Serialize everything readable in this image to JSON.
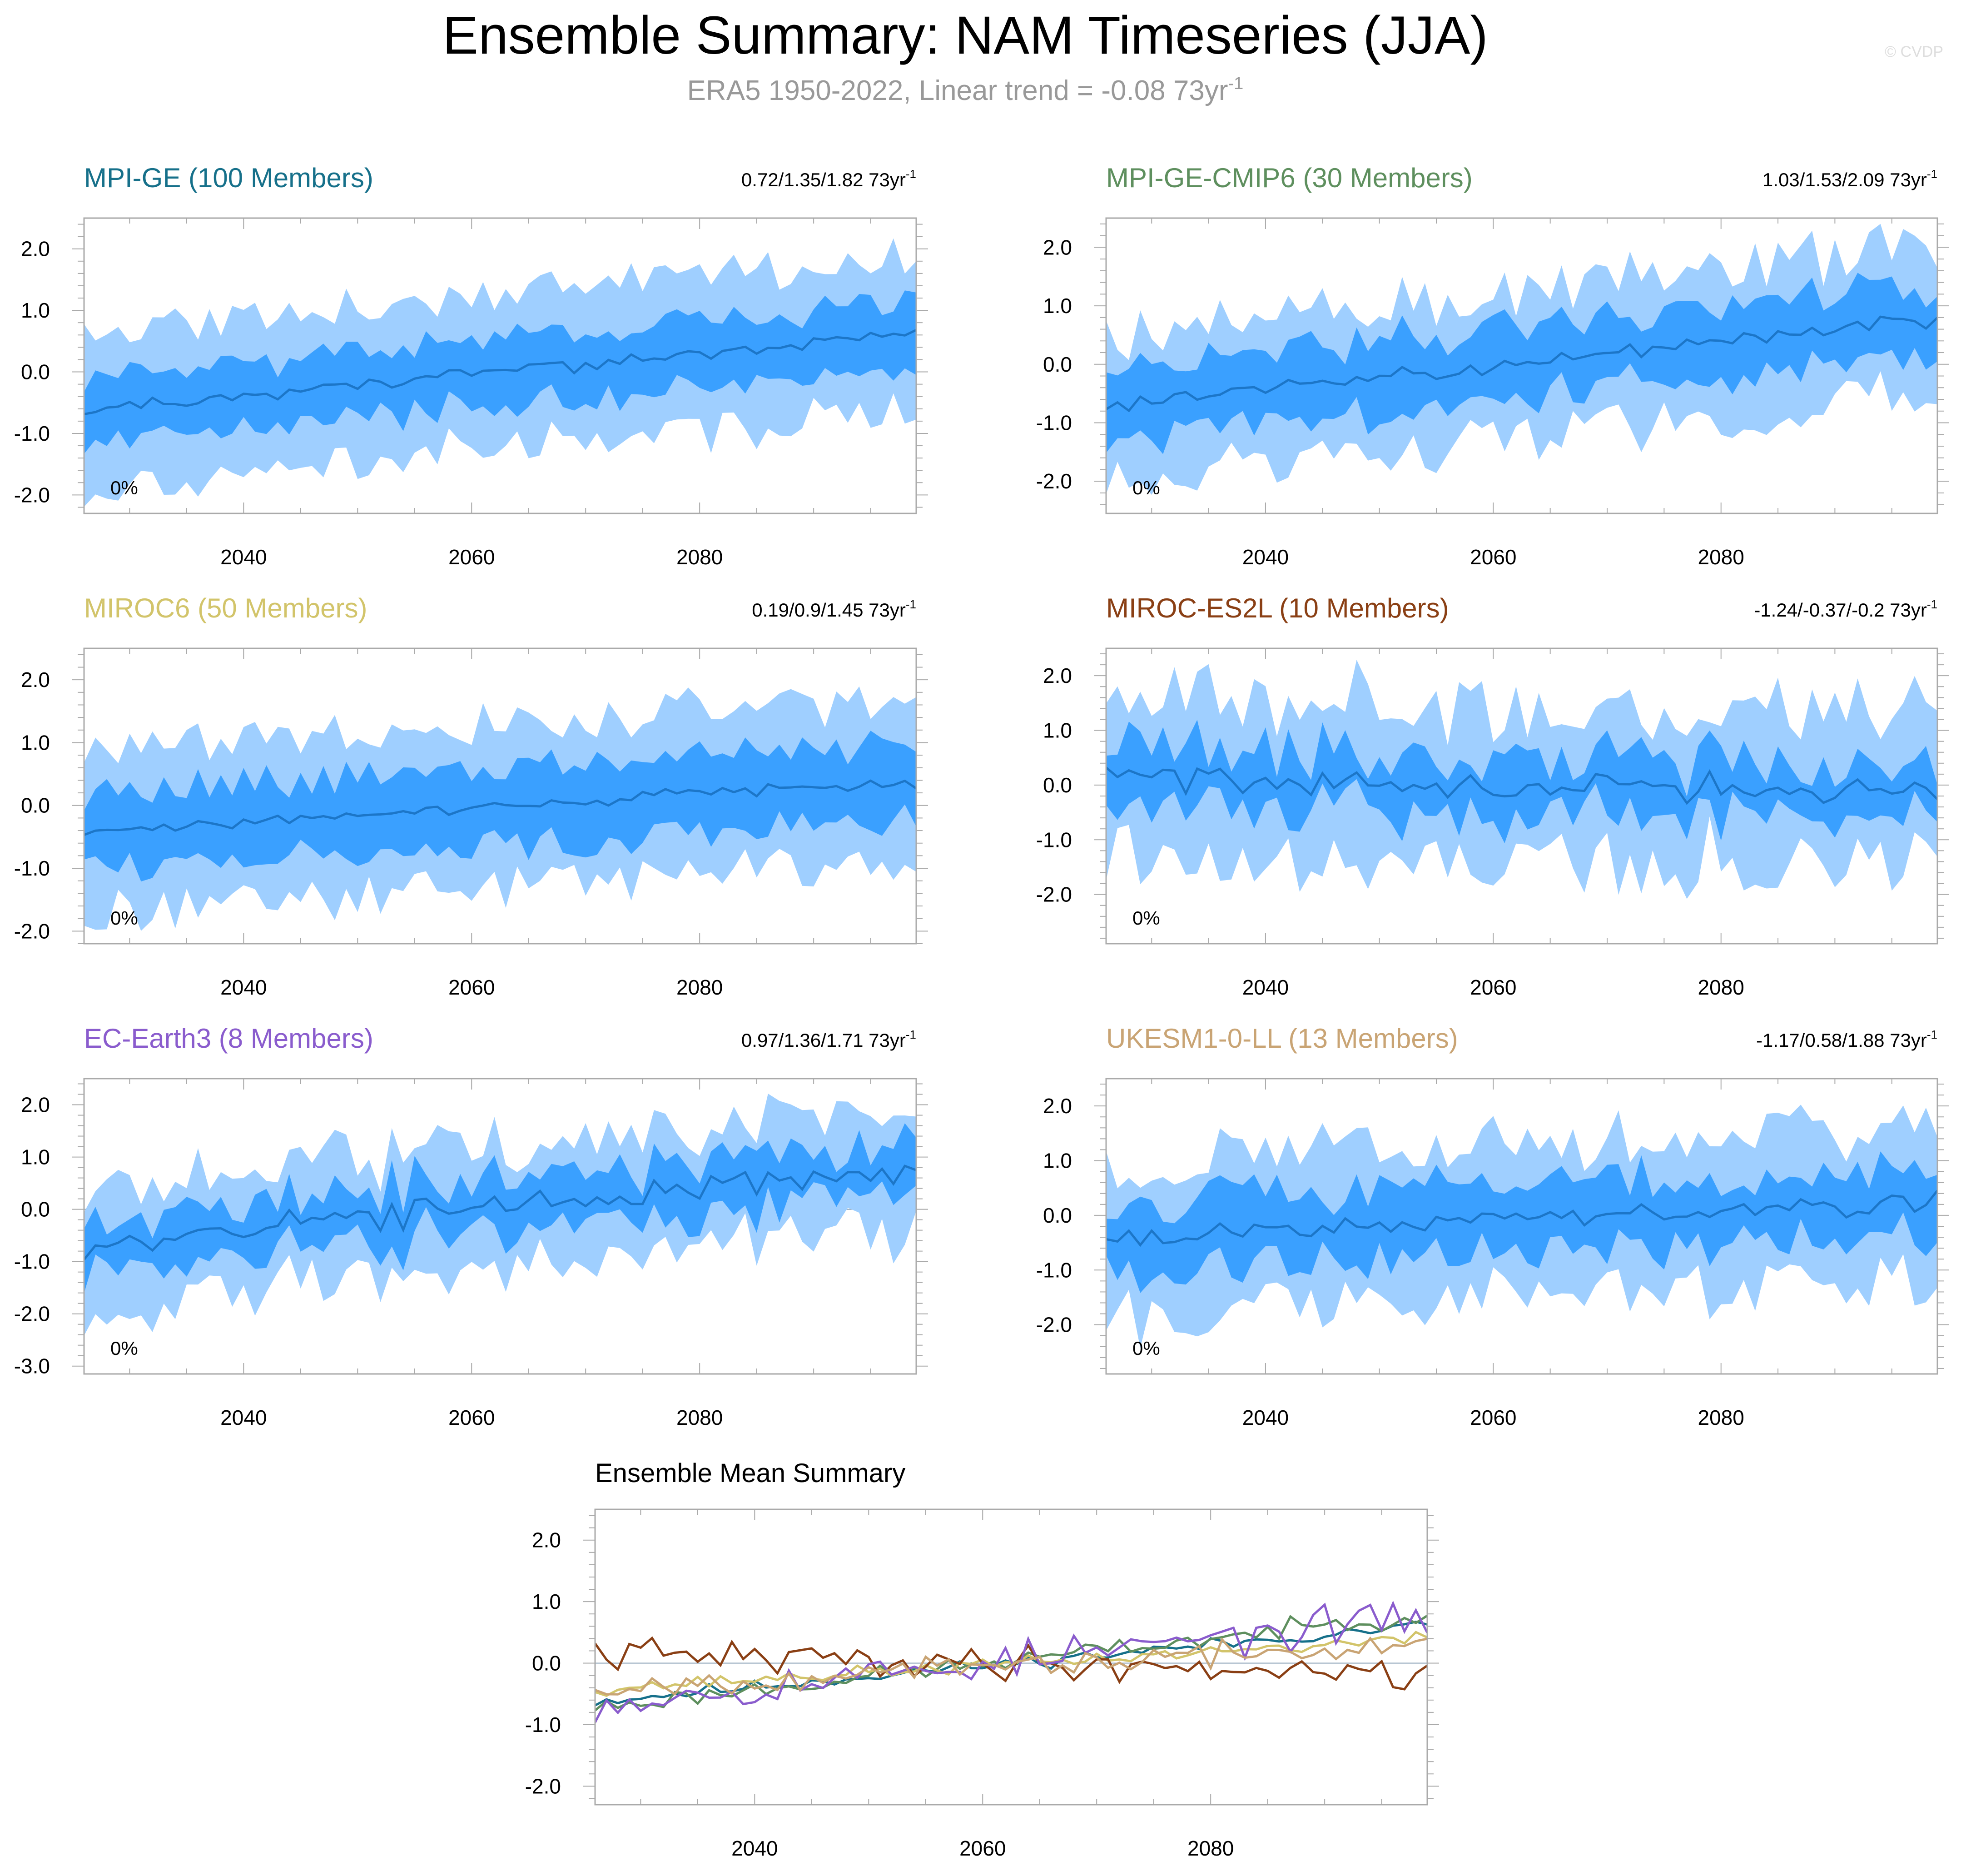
{
  "figure": {
    "title": "Ensemble Summary: NAM Timeseries (JJA)",
    "subtitle": "ERA5 1950-2022, Linear trend = -0.08 73yr",
    "subtitle_sup": "-1",
    "watermark": "© CVDP"
  },
  "colors": {
    "outer_band": "#9fcfff",
    "inner_band": "#3aa0ff",
    "mean_line": "#1c76c8",
    "zero_line": "#8aa0b6",
    "axis": "#aaaaaa",
    "text": "#000000",
    "subtitle": "#999999",
    "watermark": "#dddddd"
  },
  "chart_data": [
    {
      "type": "area",
      "title": "MPI-GE (100 Members)",
      "title_color": "#16708a",
      "trend_label": "0.72/1.35/1.82 73yr",
      "trend_sup": "-1",
      "percent_label": "0%",
      "x_range": [
        2026,
        2099
      ],
      "y_range": [
        -2.3,
        2.5
      ],
      "y_ticks": [
        2.0,
        1.0,
        0.0,
        -1.0,
        -2.0
      ],
      "y_tick_labels": [
        "2.0",
        "1.0",
        "0.0",
        "-1.0",
        "-2.0"
      ],
      "x_ticks": [
        2040,
        2060,
        2080
      ],
      "x_tick_labels": [
        "2040",
        "2060",
        "2080"
      ],
      "series": [
        {
          "name": "ensemble mean",
          "trend_start": -0.62,
          "trend_end": 0.62,
          "mean_noise": 0.1,
          "inner_half_width": 0.55,
          "outer_half_width": 1.25,
          "band_noise": 0.22,
          "seed": 11
        }
      ]
    },
    {
      "type": "area",
      "title": "MPI-GE-CMIP6 (30 Members)",
      "title_color": "#5e8f5e",
      "trend_label": "1.03/1.53/2.09 73yr",
      "trend_sup": "-1",
      "percent_label": "0%",
      "x_range": [
        2026,
        2099
      ],
      "y_range": [
        -2.55,
        2.5
      ],
      "y_ticks": [
        2.0,
        1.0,
        0.0,
        -1.0,
        -2.0
      ],
      "y_tick_labels": [
        "2.0",
        "1.0",
        "0.0",
        "-1.0",
        "-2.0"
      ],
      "x_ticks": [
        2040,
        2060,
        2080
      ],
      "x_tick_labels": [
        "2040",
        "2060",
        "2080"
      ],
      "series": [
        {
          "name": "ensemble mean",
          "trend_start": -0.72,
          "trend_end": 0.8,
          "mean_noise": 0.14,
          "inner_half_width": 0.62,
          "outer_half_width": 1.25,
          "band_noise": 0.3,
          "seed": 23
        }
      ]
    },
    {
      "type": "area",
      "title": "MIROC6 (50 Members)",
      "title_color": "#d2c46a",
      "trend_label": "0.19/0.9/1.45 73yr",
      "trend_sup": "-1",
      "percent_label": "0%",
      "x_range": [
        2026,
        2099
      ],
      "y_range": [
        -2.2,
        2.5
      ],
      "y_ticks": [
        2.0,
        1.0,
        0.0,
        -1.0,
        -2.0
      ],
      "y_tick_labels": [
        "2.0",
        "1.0",
        "0.0",
        "-1.0",
        "-2.0"
      ],
      "x_ticks": [
        2040,
        2060,
        2080
      ],
      "x_tick_labels": [
        "2040",
        "2060",
        "2080"
      ],
      "series": [
        {
          "name": "ensemble mean",
          "trend_start": -0.42,
          "trend_end": 0.4,
          "mean_noise": 0.1,
          "inner_half_width": 0.62,
          "outer_half_width": 1.3,
          "band_noise": 0.25,
          "seed": 37
        }
      ]
    },
    {
      "type": "area",
      "title": "MIROC-ES2L (10 Members)",
      "title_color": "#8a3f14",
      "trend_label": "-1.24/-0.37/-0.2 73yr",
      "trend_sup": "-1",
      "percent_label": "0%",
      "x_range": [
        2026,
        2099
      ],
      "y_range": [
        -2.9,
        2.5
      ],
      "y_ticks": [
        2.0,
        1.0,
        0.0,
        -1.0,
        -2.0
      ],
      "y_tick_labels": [
        "2.0",
        "1.0",
        "0.0",
        "-1.0",
        "-2.0"
      ],
      "x_ticks": [
        2040,
        2060,
        2080
      ],
      "x_tick_labels": [
        "2040",
        "2060",
        "2080"
      ],
      "series": [
        {
          "name": "ensemble mean",
          "trend_start": 0.15,
          "trend_end": -0.15,
          "mean_noise": 0.25,
          "inner_half_width": 0.5,
          "outer_half_width": 1.45,
          "band_noise": 0.45,
          "seed": 41
        }
      ]
    },
    {
      "type": "area",
      "title": "EC-Earth3 (8 Members)",
      "title_color": "#8a5ccd",
      "trend_label": "0.97/1.36/1.71 73yr",
      "trend_sup": "-1",
      "percent_label": "0%",
      "x_range": [
        2026,
        2099
      ],
      "y_range": [
        -3.15,
        2.5
      ],
      "y_ticks": [
        2.0,
        1.0,
        0.0,
        -1.0,
        -2.0,
        -3.0
      ],
      "y_tick_labels": [
        "2.0",
        "1.0",
        "0.0",
        "-1.0",
        "-2.0",
        "-3.0"
      ],
      "x_ticks": [
        2040,
        2060,
        2080
      ],
      "x_tick_labels": [
        "2040",
        "2060",
        "2080"
      ],
      "series": [
        {
          "name": "ensemble mean",
          "trend_start": -0.65,
          "trend_end": 0.75,
          "mean_noise": 0.28,
          "inner_half_width": 0.5,
          "outer_half_width": 1.15,
          "band_noise": 0.35,
          "seed": 53
        }
      ]
    },
    {
      "type": "area",
      "title": "UKESM1-0-LL (13 Members)",
      "title_color": "#c9a474",
      "trend_label": "-1.17/0.58/1.88 73yr",
      "trend_sup": "-1",
      "percent_label": "0%",
      "x_range": [
        2026,
        2099
      ],
      "y_range": [
        -2.9,
        2.5
      ],
      "y_ticks": [
        2.0,
        1.0,
        0.0,
        -1.0,
        -2.0
      ],
      "y_tick_labels": [
        "2.0",
        "1.0",
        "0.0",
        "-1.0",
        "-2.0"
      ],
      "x_ticks": [
        2040,
        2060,
        2080
      ],
      "x_tick_labels": [
        "2040",
        "2060",
        "2080"
      ],
      "series": [
        {
          "name": "ensemble mean",
          "trend_start": -0.4,
          "trend_end": 0.3,
          "mean_noise": 0.18,
          "inner_half_width": 0.62,
          "outer_half_width": 1.4,
          "band_noise": 0.35,
          "seed": 67
        }
      ]
    },
    {
      "type": "line",
      "title": "Ensemble Mean Summary",
      "title_color": "#000000",
      "x_range": [
        2026,
        2099
      ],
      "y_range": [
        -2.3,
        2.5
      ],
      "y_ticks": [
        2.0,
        1.0,
        0.0,
        -1.0,
        -2.0
      ],
      "y_tick_labels": [
        "2.0",
        "1.0",
        "0.0",
        "-1.0",
        "-2.0"
      ],
      "x_ticks": [
        2040,
        2060,
        2080
      ],
      "x_tick_labels": [
        "2040",
        "2060",
        "2080"
      ],
      "series": [
        {
          "name": "MPI-GE",
          "color": "#16708a",
          "trend_start": -0.62,
          "trend_end": 0.62,
          "mean_noise": 0.1,
          "seed": 11
        },
        {
          "name": "MPI-GE-CMIP6",
          "color": "#5e8f5e",
          "trend_start": -0.72,
          "trend_end": 0.8,
          "mean_noise": 0.14,
          "seed": 23
        },
        {
          "name": "MIROC6",
          "color": "#d2c46a",
          "trend_start": -0.42,
          "trend_end": 0.4,
          "mean_noise": 0.1,
          "seed": 37
        },
        {
          "name": "MIROC-ES2L",
          "color": "#8a3f14",
          "trend_start": 0.15,
          "trend_end": -0.15,
          "mean_noise": 0.25,
          "seed": 41
        },
        {
          "name": "EC-Earth3",
          "color": "#8a5ccd",
          "trend_start": -0.65,
          "trend_end": 0.75,
          "mean_noise": 0.28,
          "seed": 53
        },
        {
          "name": "UKESM1-0-LL",
          "color": "#c9a474",
          "trend_start": -0.4,
          "trend_end": 0.3,
          "mean_noise": 0.18,
          "seed": 67
        }
      ]
    }
  ]
}
